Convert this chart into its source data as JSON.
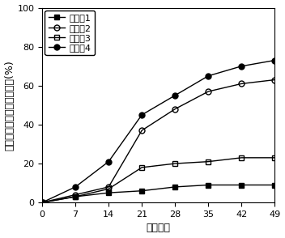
{
  "x": [
    0,
    7,
    14,
    21,
    28,
    35,
    42,
    49
  ],
  "series": [
    {
      "label": "实验组1",
      "values": [
        0,
        3,
        5,
        6,
        8,
        9,
        9,
        9
      ],
      "marker": "s",
      "fillstyle": "full",
      "color": "black",
      "linestyle": "-"
    },
    {
      "label": "实验组2",
      "values": [
        0,
        4,
        8,
        37,
        48,
        57,
        61,
        63
      ],
      "marker": "o",
      "fillstyle": "none",
      "color": "black",
      "linestyle": "-"
    },
    {
      "label": "实验组3",
      "values": [
        0,
        3,
        7,
        18,
        20,
        21,
        23,
        23
      ],
      "marker": "s",
      "fillstyle": "none",
      "color": "black",
      "linestyle": "-"
    },
    {
      "label": "实验组4",
      "values": [
        0,
        8,
        21,
        45,
        55,
        65,
        70,
        73
      ],
      "marker": "o",
      "fillstyle": "full",
      "color": "black",
      "linestyle": "-"
    }
  ],
  "xlabel": "堆肺天数",
  "ylabel": "污染土壤中多环芳烃去除率(%)",
  "xlim": [
    0,
    49
  ],
  "ylim": [
    0,
    100
  ],
  "xticks": [
    0,
    7,
    14,
    21,
    28,
    35,
    42,
    49
  ],
  "yticks": [
    0,
    20,
    40,
    60,
    80,
    100
  ],
  "label_fontsize": 9,
  "tick_fontsize": 8,
  "legend_fontsize": 8,
  "background_color": "#ffffff"
}
